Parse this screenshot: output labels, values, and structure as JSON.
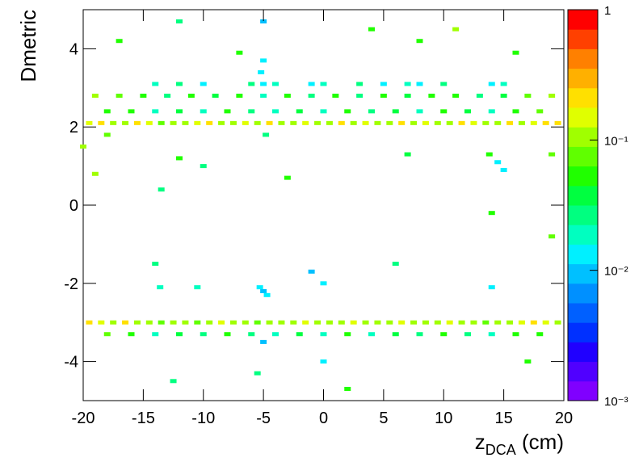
{
  "chart_data": {
    "type": "heatmap",
    "x_label": "z",
    "x_label_sub": "DCA",
    "x_label_unit": " (cm)",
    "y_label": "Dmetric",
    "xlim": [
      -20,
      20
    ],
    "xticks": [
      -20,
      -15,
      -10,
      -5,
      0,
      5,
      10,
      15,
      20
    ],
    "ylim": [
      -5,
      5
    ],
    "yticks": [
      -4,
      -2,
      0,
      2,
      4
    ],
    "zlim": [
      0.001,
      1
    ],
    "zlog": true,
    "zticks": [
      {
        "value": 0.001,
        "label": "10⁻³"
      },
      {
        "value": 0.01,
        "label": "10⁻²"
      },
      {
        "value": 0.1,
        "label": "10⁻¹"
      },
      1
    ],
    "palette": [
      "#8000ff",
      "#5000ff",
      "#2000ff",
      "#0030ff",
      "#0060ff",
      "#0090ff",
      "#00c0ff",
      "#00f0ff",
      "#00ffc0",
      "#00ff80",
      "#00ff40",
      "#20ff00",
      "#60ff00",
      "#a0ff00",
      "#e0ff00",
      "#ffe000",
      "#ffb000",
      "#ff8000",
      "#ff4000",
      "#ff0000"
    ],
    "cells": [
      [
        -19.5,
        2.1,
        0.15
      ],
      [
        -18.5,
        2.1,
        0.2
      ],
      [
        -17.5,
        2.1,
        0.12
      ],
      [
        -16.5,
        2.1,
        0.1
      ],
      [
        -15.5,
        2.1,
        0.25
      ],
      [
        -14.5,
        2.1,
        0.15
      ],
      [
        -13.5,
        2.1,
        0.08
      ],
      [
        -12.5,
        2.1,
        0.12
      ],
      [
        -11.5,
        2.1,
        0.1
      ],
      [
        -10.5,
        2.1,
        0.15
      ],
      [
        -9.5,
        2.1,
        0.2
      ],
      [
        -8.5,
        2.1,
        0.1
      ],
      [
        -7.5,
        2.1,
        0.12
      ],
      [
        -6.5,
        2.1,
        0.15
      ],
      [
        -5.5,
        2.1,
        0.1
      ],
      [
        -4.5,
        2.1,
        0.18
      ],
      [
        -3.5,
        2.1,
        0.12
      ],
      [
        -2.5,
        2.1,
        0.1
      ],
      [
        -1.5,
        2.1,
        0.15
      ],
      [
        -0.5,
        2.1,
        0.12
      ],
      [
        0.5,
        2.1,
        0.1
      ],
      [
        1.5,
        2.1,
        0.2
      ],
      [
        2.5,
        2.1,
        0.12
      ],
      [
        3.5,
        2.1,
        0.15
      ],
      [
        4.5,
        2.1,
        0.1
      ],
      [
        5.5,
        2.1,
        0.12
      ],
      [
        6.5,
        2.1,
        0.18
      ],
      [
        7.5,
        2.1,
        0.1
      ],
      [
        8.5,
        2.1,
        0.15
      ],
      [
        9.5,
        2.1,
        0.12
      ],
      [
        10.5,
        2.1,
        0.1
      ],
      [
        11.5,
        2.1,
        0.2
      ],
      [
        12.5,
        2.1,
        0.15
      ],
      [
        13.5,
        2.1,
        0.12
      ],
      [
        14.5,
        2.1,
        0.1
      ],
      [
        15.5,
        2.1,
        0.18
      ],
      [
        16.5,
        2.1,
        0.12
      ],
      [
        17.5,
        2.1,
        0.15
      ],
      [
        18.5,
        2.1,
        0.2
      ],
      [
        19.5,
        2.1,
        0.25
      ],
      [
        -19.5,
        -3.0,
        0.2
      ],
      [
        -18.5,
        -3.0,
        0.15
      ],
      [
        -17.5,
        -3.0,
        0.12
      ],
      [
        -16.5,
        -3.0,
        0.2
      ],
      [
        -15.5,
        -3.0,
        0.1
      ],
      [
        -14.5,
        -3.0,
        0.12
      ],
      [
        -13.5,
        -3.0,
        0.08
      ],
      [
        -12.5,
        -3.0,
        0.1
      ],
      [
        -11.5,
        -3.0,
        0.12
      ],
      [
        -10.5,
        -3.0,
        0.08
      ],
      [
        -9.5,
        -3.0,
        0.1
      ],
      [
        -8.5,
        -3.0,
        0.15
      ],
      [
        -7.5,
        -3.0,
        0.12
      ],
      [
        -6.5,
        -3.0,
        0.1
      ],
      [
        -5.5,
        -3.0,
        0.08
      ],
      [
        -4.5,
        -3.0,
        0.1
      ],
      [
        -3.5,
        -3.0,
        0.12
      ],
      [
        -2.5,
        -3.0,
        0.1
      ],
      [
        -1.5,
        -3.0,
        0.15
      ],
      [
        -0.5,
        -3.0,
        0.1
      ],
      [
        0.5,
        -3.0,
        0.12
      ],
      [
        1.5,
        -3.0,
        0.1
      ],
      [
        2.5,
        -3.0,
        0.15
      ],
      [
        3.5,
        -3.0,
        0.1
      ],
      [
        4.5,
        -3.0,
        0.12
      ],
      [
        5.5,
        -3.0,
        0.1
      ],
      [
        6.5,
        -3.0,
        0.15
      ],
      [
        7.5,
        -3.0,
        0.1
      ],
      [
        8.5,
        -3.0,
        0.12
      ],
      [
        9.5,
        -3.0,
        0.1
      ],
      [
        10.5,
        -3.0,
        0.15
      ],
      [
        11.5,
        -3.0,
        0.12
      ],
      [
        12.5,
        -3.0,
        0.1
      ],
      [
        13.5,
        -3.0,
        0.08
      ],
      [
        14.5,
        -3.0,
        0.1
      ],
      [
        15.5,
        -3.0,
        0.12
      ],
      [
        16.5,
        -3.0,
        0.15
      ],
      [
        17.5,
        -3.0,
        0.2
      ],
      [
        18.5,
        -3.0,
        0.15
      ],
      [
        19.5,
        -3.0,
        0.12
      ],
      [
        -19,
        2.8,
        0.1
      ],
      [
        -17,
        2.8,
        0.08
      ],
      [
        -15,
        2.8,
        0.05
      ],
      [
        -13,
        2.8,
        0.03
      ],
      [
        -11,
        2.8,
        0.05
      ],
      [
        -9,
        2.8,
        0.04
      ],
      [
        -7,
        2.8,
        0.06
      ],
      [
        -5,
        2.8,
        0.02
      ],
      [
        -3,
        2.8,
        0.05
      ],
      [
        -1,
        2.8,
        0.03
      ],
      [
        1,
        2.8,
        0.05
      ],
      [
        3,
        2.8,
        0.03
      ],
      [
        5,
        2.8,
        0.06
      ],
      [
        7,
        2.8,
        0.04
      ],
      [
        9,
        2.8,
        0.05
      ],
      [
        11,
        2.8,
        0.06
      ],
      [
        13,
        2.8,
        0.03
      ],
      [
        15,
        2.8,
        0.04
      ],
      [
        17,
        2.8,
        0.08
      ],
      [
        19,
        2.8,
        0.1
      ],
      [
        -18,
        2.4,
        0.06
      ],
      [
        -16,
        2.4,
        0.05
      ],
      [
        -14,
        2.4,
        0.02
      ],
      [
        -12,
        2.4,
        0.04
      ],
      [
        -10,
        2.4,
        0.02
      ],
      [
        -8,
        2.4,
        0.05
      ],
      [
        -6,
        2.4,
        0.03
      ],
      [
        -4,
        2.4,
        0.02
      ],
      [
        -2,
        2.4,
        0.04
      ],
      [
        0,
        2.4,
        0.02
      ],
      [
        2,
        2.4,
        0.05
      ],
      [
        4,
        2.4,
        0.03
      ],
      [
        6,
        2.4,
        0.04
      ],
      [
        8,
        2.4,
        0.02
      ],
      [
        10,
        2.4,
        0.05
      ],
      [
        12,
        2.4,
        0.04
      ],
      [
        14,
        2.4,
        0.02
      ],
      [
        16,
        2.4,
        0.05
      ],
      [
        18,
        2.4,
        0.08
      ],
      [
        -18,
        -3.3,
        0.08
      ],
      [
        -16,
        -3.3,
        0.05
      ],
      [
        -14,
        -3.3,
        0.02
      ],
      [
        -12,
        -3.3,
        0.04
      ],
      [
        -10,
        -3.3,
        0.03
      ],
      [
        -8,
        -3.3,
        0.05
      ],
      [
        -6,
        -3.3,
        0.03
      ],
      [
        -4,
        -3.3,
        0.02
      ],
      [
        -2,
        -3.3,
        0.04
      ],
      [
        0,
        -3.3,
        0.02
      ],
      [
        2,
        -3.3,
        0.05
      ],
      [
        4,
        -3.3,
        0.02
      ],
      [
        6,
        -3.3,
        0.04
      ],
      [
        8,
        -3.3,
        0.03
      ],
      [
        10,
        -3.3,
        0.05
      ],
      [
        12,
        -3.3,
        0.03
      ],
      [
        14,
        -3.3,
        0.02
      ],
      [
        16,
        -3.3,
        0.05
      ],
      [
        18,
        -3.3,
        0.06
      ],
      [
        -14,
        3.1,
        0.02
      ],
      [
        -12,
        3.1,
        0.03
      ],
      [
        -10,
        3.1,
        0.015
      ],
      [
        -6,
        3.1,
        0.03
      ],
      [
        -5,
        3.1,
        0.015
      ],
      [
        -4,
        3.1,
        0.02
      ],
      [
        -1,
        3.1,
        0.015
      ],
      [
        0,
        3.1,
        0.02
      ],
      [
        3,
        3.1,
        0.03
      ],
      [
        5,
        3.1,
        0.015
      ],
      [
        7,
        3.1,
        0.02
      ],
      [
        8,
        3.1,
        0.015
      ],
      [
        10,
        3.1,
        0.03
      ],
      [
        14,
        3.1,
        0.015
      ],
      [
        15,
        3.1,
        0.02
      ],
      [
        -5,
        3.7,
        0.012
      ],
      [
        -5.2,
        3.4,
        0.015
      ],
      [
        -4.8,
        1.8,
        0.03
      ],
      [
        -5,
        -2.2,
        0.008
      ],
      [
        -5.3,
        -2.1,
        0.012
      ],
      [
        -4.7,
        -2.3,
        0.012
      ],
      [
        14.5,
        1.1,
        0.015
      ],
      [
        15,
        0.9,
        0.012
      ],
      [
        13.8,
        1.3,
        0.05
      ],
      [
        19,
        1.3,
        0.08
      ],
      [
        -10,
        1.0,
        0.03
      ],
      [
        -12,
        1.2,
        0.05
      ],
      [
        -13.5,
        0.4,
        0.03
      ],
      [
        -1,
        -1.7,
        0.01
      ],
      [
        0,
        -2,
        0.015
      ],
      [
        -13.6,
        -2.1,
        0.02
      ],
      [
        -10.5,
        -2.1,
        0.02
      ],
      [
        14,
        -2.1,
        0.012
      ],
      [
        -14,
        -1.5,
        0.03
      ],
      [
        -20,
        1.5,
        0.1
      ],
      [
        -19,
        0.8,
        0.1
      ],
      [
        -18,
        1.8,
        0.08
      ],
      [
        -17,
        4.2,
        0.05
      ],
      [
        -12,
        4.7,
        0.03
      ],
      [
        -5,
        4.7,
        0.01
      ],
      [
        -5,
        -3.5,
        0.008
      ],
      [
        0,
        -4,
        0.015
      ],
      [
        -5.5,
        -4.3,
        0.03
      ],
      [
        -12.5,
        -4.5,
        0.03
      ],
      [
        8,
        4.2,
        0.05
      ],
      [
        11,
        4.5,
        0.1
      ],
      [
        16,
        3.9,
        0.05
      ],
      [
        6,
        -1.5,
        0.03
      ],
      [
        14,
        -0.2,
        0.05
      ],
      [
        19,
        -0.8,
        0.08
      ],
      [
        2,
        -4.7,
        0.05
      ],
      [
        17,
        -4,
        0.06
      ],
      [
        -3,
        0.7,
        0.05
      ],
      [
        7,
        1.3,
        0.04
      ],
      [
        -7,
        3.9,
        0.05
      ],
      [
        4,
        4.5,
        0.06
      ]
    ]
  }
}
